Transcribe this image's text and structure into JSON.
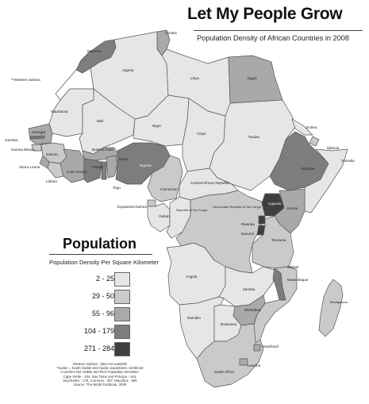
{
  "title": "Let My People Grow",
  "subtitle": "Population Density of African Countries in 2008",
  "legend": {
    "title": "Population",
    "subtitle": "Population Density Per Square Kilometer",
    "items": [
      {
        "label": "2 - 25",
        "color": "#e6e6e6"
      },
      {
        "label": "29 - 50",
        "color": "#cacaca"
      },
      {
        "label": "55 - 96",
        "color": "#a9a9a9"
      },
      {
        "label": "104 - 179",
        "color": "#7d7d7d"
      },
      {
        "label": "271 - 284",
        "color": "#3f3f3f"
      }
    ]
  },
  "notes": [
    "Western Sahara - data not available",
    "*Sudan = South Sudan and Sudan populations combined",
    "Countries Not Visible and their Population Densities:",
    "Cape Verde - 104, Sao Tome and Principe - 163,",
    "Seychelles - 179, Comoros - 357, Mauritius - 695",
    "Source: The World Factbook, 2009"
  ],
  "countries": {
    "tunisia": "Tunisia",
    "morocco": "Morocco",
    "western_sahara": "**Western Sahara",
    "algeria": "Algeria",
    "libya": "Libya",
    "egypt": "Egypt",
    "mauritania": "Mauritania",
    "mali": "Mali",
    "niger": "Niger",
    "chad": "Chad",
    "sudan": "*Sudan",
    "eritrea": "Eritrea",
    "djibouti": "Djibouti",
    "gambia": "Gambia",
    "senegal": "Senegal",
    "guinea_bissau": "Guinea Bissau",
    "guinea": "Guinea",
    "sierra_leone": "Sierra Leone",
    "liberia": "Liberia",
    "cote_divoire": "Cote d'Ivoire",
    "burkina_faso": "Burkina Faso",
    "ghana": "Ghana",
    "togo": "Togo",
    "benin": "Benin",
    "nigeria": "Nigeria",
    "ethiopia": "Ethiopia",
    "somalia": "Somalia",
    "cameroon": "Cameroon",
    "car": "Central African Republic",
    "equatorial_guinea": "Equatorial Guinea",
    "gabon": "Gabon",
    "republic_congo": "Republic of the Congo",
    "drc": "Democratic Republic of the Congo",
    "uganda": "Uganda",
    "kenya": "Kenya",
    "rwanda": "Rwanda",
    "burundi": "Burundi",
    "tanzania": "Tanzania",
    "angola": "Angola",
    "zambia": "Zambia",
    "malawi": "Malawi",
    "mozambique": "Mozambique",
    "madagascar": "Madagascar",
    "namibia": "Namibia",
    "zimbabwe": "Zimbabwe",
    "botswana": "Botswana",
    "swaziland": "Swaziland",
    "lesotho": "Lesotho",
    "south_africa": "South Africa"
  }
}
